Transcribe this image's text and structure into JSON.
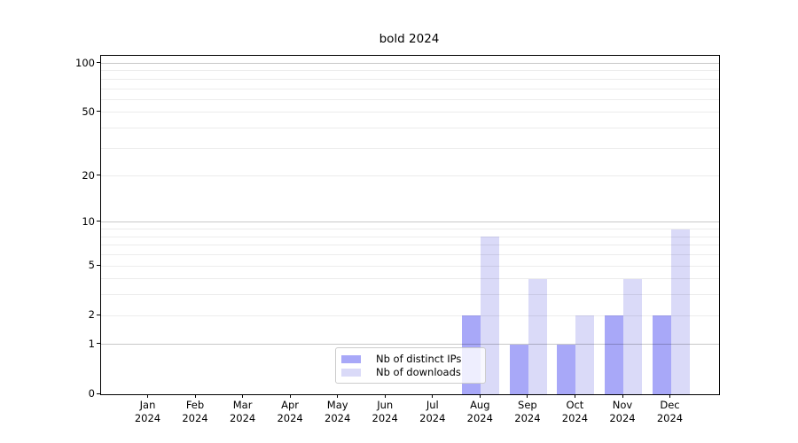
{
  "figure": {
    "title": "bold 2024"
  },
  "chart_data": {
    "type": "bar",
    "title": "bold 2024",
    "categories": [
      "Jan",
      "Feb",
      "Mar",
      "Apr",
      "May",
      "Jun",
      "Jul",
      "Aug",
      "Sep",
      "Oct",
      "Nov",
      "Dec"
    ],
    "year_label": "2024",
    "series": [
      {
        "name": "Nb of distinct IPs",
        "color": "#a8a8f8",
        "values": [
          0,
          0,
          0,
          0,
          0,
          0,
          0,
          2,
          1,
          1,
          2,
          2
        ]
      },
      {
        "name": "Nb of downloads",
        "color": "#dadaf8",
        "values": [
          0,
          0,
          0,
          0,
          0,
          0,
          0,
          8,
          4,
          2,
          4,
          9
        ]
      }
    ],
    "y_axis": {
      "scale": "log1p",
      "tick_values": [
        0,
        1,
        2,
        5,
        10,
        20,
        50,
        100
      ],
      "tick_labels": [
        "0",
        "1",
        "2",
        "5",
        "10",
        "20",
        "50",
        "100"
      ],
      "major_gridlines": [
        1,
        10,
        100
      ],
      "minor_gridlines": [
        2,
        3,
        4,
        5,
        6,
        7,
        8,
        9,
        20,
        30,
        40,
        50,
        60,
        70,
        80,
        90
      ],
      "ylim": [
        0,
        112
      ]
    },
    "x_axis": {
      "tick_labels": [
        "Jan 2024",
        "Feb 2024",
        "Mar 2024",
        "Apr 2024",
        "May 2024",
        "Jun 2024",
        "Jul 2024",
        "Aug 2024",
        "Sep 2024",
        "Oct 2024",
        "Nov 2024",
        "Dec 2024"
      ]
    },
    "legend": {
      "items": [
        "Nb of distinct IPs",
        "Nb of downloads"
      ],
      "position": "lower-center-inside"
    },
    "grid": true,
    "colors": {
      "grid_major": "rgba(0,0,0,0.215)",
      "grid_minor": "rgba(0,0,0,0.075)",
      "spine": "#000000"
    }
  }
}
